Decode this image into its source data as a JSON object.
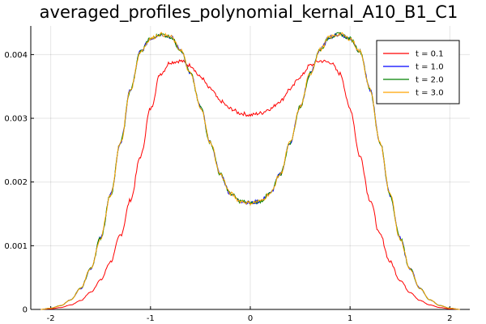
{
  "chart_data": {
    "type": "line",
    "title": "averaged_profiles_polynomial_kernal_A10_B1_C1",
    "xlabel": "",
    "ylabel": "",
    "xlim": [
      -2.2,
      2.2
    ],
    "ylim": [
      0,
      0.00445
    ],
    "x_ticks": [
      -2,
      -1,
      0,
      1,
      2
    ],
    "x_tick_labels": [
      "-2",
      "-1",
      "0",
      "1",
      "2"
    ],
    "y_ticks": [
      0.0,
      0.001,
      0.002,
      0.003,
      0.004
    ],
    "y_tick_labels": [
      "0",
      "0.001",
      "0.002",
      "0.003",
      "0.004"
    ],
    "grid": true,
    "legend_position": "top-right",
    "series": [
      {
        "name": "t = 0.1",
        "color": "#ff0000",
        "x": [
          -2.1,
          -2.0,
          -1.9,
          -1.8,
          -1.7,
          -1.6,
          -1.5,
          -1.4,
          -1.3,
          -1.2,
          -1.1,
          -1.0,
          -0.9,
          -0.8,
          -0.7,
          -0.6,
          -0.5,
          -0.4,
          -0.3,
          -0.2,
          -0.1,
          0.0,
          0.1,
          0.2,
          0.3,
          0.4,
          0.5,
          0.6,
          0.7,
          0.8,
          0.9,
          1.0,
          1.1,
          1.2,
          1.3,
          1.4,
          1.5,
          1.6,
          1.7,
          1.8,
          1.9,
          2.0,
          2.1
        ],
        "y": [
          0.0,
          1e-05,
          3e-05,
          7e-05,
          0.00014,
          0.00027,
          0.00046,
          0.00075,
          0.00117,
          0.00172,
          0.0024,
          0.00315,
          0.0037,
          0.00388,
          0.0039,
          0.00383,
          0.00365,
          0.00346,
          0.00327,
          0.00315,
          0.00308,
          0.00305,
          0.00308,
          0.00315,
          0.00327,
          0.00346,
          0.00365,
          0.00383,
          0.0039,
          0.00388,
          0.0037,
          0.00315,
          0.0024,
          0.00172,
          0.00117,
          0.00075,
          0.00046,
          0.00027,
          0.00014,
          7e-05,
          3e-05,
          1e-05,
          0.0
        ]
      },
      {
        "name": "t = 1.0",
        "color": "#0000ff",
        "x": [
          -2.1,
          -2.0,
          -1.9,
          -1.8,
          -1.7,
          -1.6,
          -1.5,
          -1.4,
          -1.3,
          -1.2,
          -1.1,
          -1.0,
          -0.9,
          -0.8,
          -0.7,
          -0.6,
          -0.5,
          -0.4,
          -0.3,
          -0.2,
          -0.1,
          0.0,
          0.1,
          0.2,
          0.3,
          0.4,
          0.5,
          0.6,
          0.7,
          0.8,
          0.9,
          1.0,
          1.1,
          1.2,
          1.3,
          1.4,
          1.5,
          1.6,
          1.7,
          1.8,
          1.9,
          2.0,
          2.1
        ],
        "y": [
          0.0,
          2e-05,
          6e-05,
          0.00015,
          0.00033,
          0.00064,
          0.00112,
          0.0018,
          0.00262,
          0.00345,
          0.00405,
          0.00425,
          0.00432,
          0.00428,
          0.00408,
          0.0037,
          0.00318,
          0.00262,
          0.00212,
          0.00182,
          0.0017,
          0.00167,
          0.0017,
          0.00182,
          0.00212,
          0.00262,
          0.00318,
          0.0037,
          0.00408,
          0.00428,
          0.00432,
          0.00425,
          0.00405,
          0.00345,
          0.00262,
          0.0018,
          0.00112,
          0.00064,
          0.00033,
          0.00015,
          6e-05,
          2e-05,
          0.0
        ]
      },
      {
        "name": "t = 2.0",
        "color": "#008000",
        "x": [
          -2.1,
          -2.0,
          -1.9,
          -1.8,
          -1.7,
          -1.6,
          -1.5,
          -1.4,
          -1.3,
          -1.2,
          -1.1,
          -1.0,
          -0.9,
          -0.8,
          -0.7,
          -0.6,
          -0.5,
          -0.4,
          -0.3,
          -0.2,
          -0.1,
          0.0,
          0.1,
          0.2,
          0.3,
          0.4,
          0.5,
          0.6,
          0.7,
          0.8,
          0.9,
          1.0,
          1.1,
          1.2,
          1.3,
          1.4,
          1.5,
          1.6,
          1.7,
          1.8,
          1.9,
          2.0,
          2.1
        ],
        "y": [
          0.0,
          2e-05,
          6e-05,
          0.00015,
          0.00033,
          0.00064,
          0.00112,
          0.0018,
          0.00262,
          0.00345,
          0.00405,
          0.00425,
          0.00432,
          0.00428,
          0.00408,
          0.0037,
          0.00318,
          0.00262,
          0.00212,
          0.00182,
          0.0017,
          0.00167,
          0.0017,
          0.00182,
          0.00212,
          0.00262,
          0.00318,
          0.0037,
          0.00408,
          0.00428,
          0.00432,
          0.00425,
          0.00405,
          0.00345,
          0.00262,
          0.0018,
          0.00112,
          0.00064,
          0.00033,
          0.00015,
          6e-05,
          2e-05,
          0.0
        ]
      },
      {
        "name": "t = 3.0",
        "color": "#ffa500",
        "x": [
          -2.1,
          -2.0,
          -1.9,
          -1.8,
          -1.7,
          -1.6,
          -1.5,
          -1.4,
          -1.3,
          -1.2,
          -1.1,
          -1.0,
          -0.9,
          -0.8,
          -0.7,
          -0.6,
          -0.5,
          -0.4,
          -0.3,
          -0.2,
          -0.1,
          0.0,
          0.1,
          0.2,
          0.3,
          0.4,
          0.5,
          0.6,
          0.7,
          0.8,
          0.9,
          1.0,
          1.1,
          1.2,
          1.3,
          1.4,
          1.5,
          1.6,
          1.7,
          1.8,
          1.9,
          2.0,
          2.1
        ],
        "y": [
          0.0,
          2e-05,
          6e-05,
          0.00015,
          0.00033,
          0.00064,
          0.00112,
          0.0018,
          0.00262,
          0.00345,
          0.00405,
          0.00425,
          0.00432,
          0.00428,
          0.00408,
          0.0037,
          0.00318,
          0.00262,
          0.00212,
          0.00182,
          0.0017,
          0.00167,
          0.0017,
          0.00182,
          0.00212,
          0.00262,
          0.00318,
          0.0037,
          0.00408,
          0.00428,
          0.00432,
          0.00425,
          0.00405,
          0.00345,
          0.00262,
          0.0018,
          0.00112,
          0.00064,
          0.00033,
          0.00015,
          6e-05,
          2e-05,
          0.0
        ]
      }
    ]
  }
}
